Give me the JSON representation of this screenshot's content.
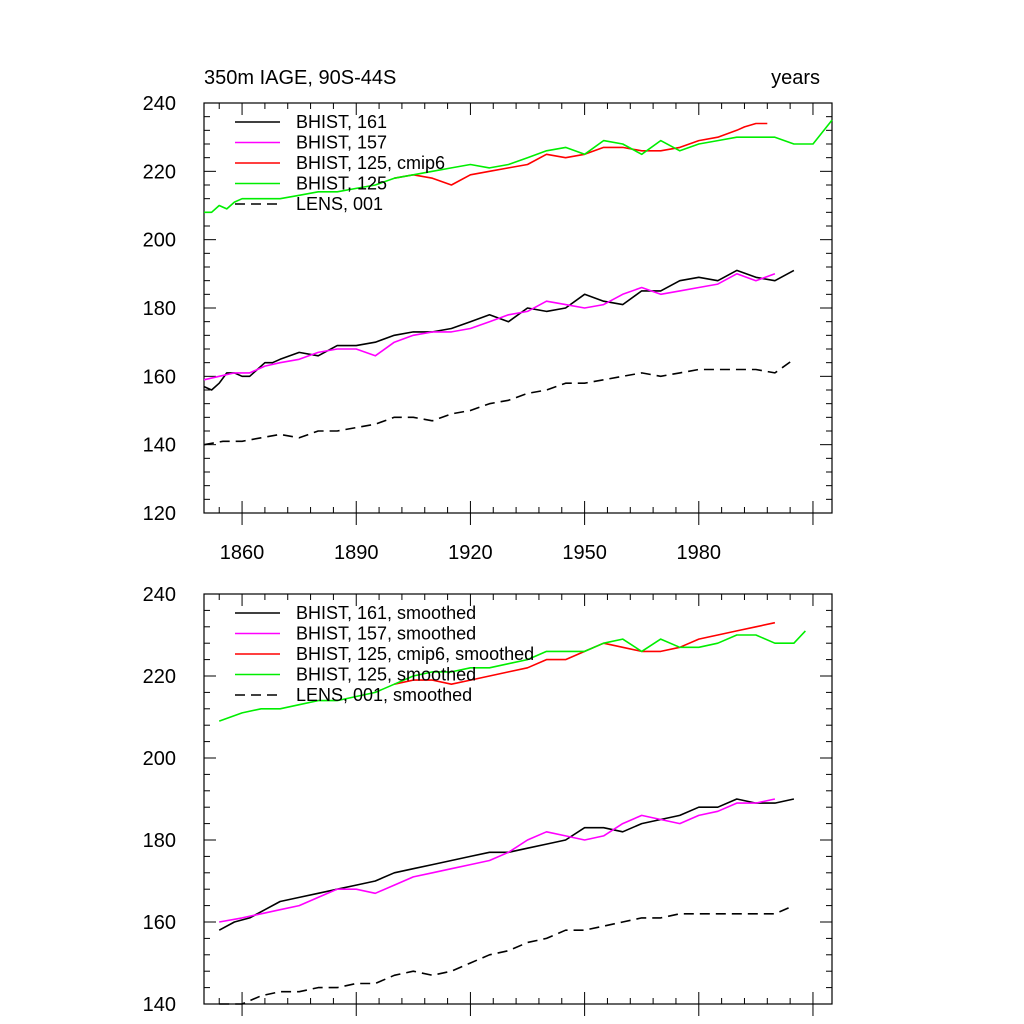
{
  "figure_title": {
    "left": "350m IAGE, 90S-44S",
    "right": "years"
  },
  "colors": {
    "BHIST_161": "#000000",
    "BHIST_157": "#ff00ff",
    "BHIST_125_cmip6": "#ff0000",
    "BHIST_125": "#00ee00",
    "LENS_001": "#000000"
  },
  "chart_data": [
    {
      "type": "line",
      "title": "350m IAGE, 90S-44S",
      "right_title": "years",
      "xlabel": "",
      "ylabel": "",
      "xlim": [
        1850,
        2015
      ],
      "ylim": [
        120,
        240
      ],
      "xticks": [
        1860,
        1890,
        1920,
        1950,
        1980
      ],
      "yticks": [
        120,
        140,
        160,
        180,
        200,
        220,
        240
      ],
      "legend_position": "top-left",
      "series": [
        {
          "name": "BHIST, 161",
          "color": "#000000",
          "dash": "solid",
          "x": [
            1850,
            1852,
            1854,
            1856,
            1858,
            1860,
            1862,
            1864,
            1866,
            1868,
            1870,
            1875,
            1880,
            1885,
            1890,
            1895,
            1900,
            1905,
            1910,
            1915,
            1920,
            1925,
            1930,
            1935,
            1940,
            1945,
            1950,
            1955,
            1960,
            1965,
            1970,
            1975,
            1980,
            1985,
            1990,
            1995,
            2000,
            2005
          ],
          "y": [
            157,
            156,
            158,
            161,
            161,
            160,
            160,
            162,
            164,
            164,
            165,
            167,
            166,
            169,
            169,
            170,
            172,
            173,
            173,
            174,
            176,
            178,
            176,
            180,
            179,
            180,
            184,
            182,
            181,
            185,
            185,
            188,
            189,
            188,
            191,
            189,
            188,
            191
          ]
        },
        {
          "name": "BHIST, 157",
          "color": "#ff00ff",
          "dash": "solid",
          "x": [
            1850,
            1854,
            1858,
            1862,
            1866,
            1870,
            1875,
            1880,
            1885,
            1890,
            1895,
            1900,
            1905,
            1910,
            1915,
            1920,
            1925,
            1930,
            1935,
            1940,
            1945,
            1950,
            1955,
            1960,
            1965,
            1970,
            1975,
            1980,
            1985,
            1990,
            1995,
            2000
          ],
          "y": [
            159,
            160,
            161,
            161,
            163,
            164,
            165,
            167,
            168,
            168,
            166,
            170,
            172,
            173,
            173,
            174,
            176,
            178,
            179,
            182,
            181,
            180,
            181,
            184,
            186,
            184,
            185,
            186,
            187,
            190,
            188,
            190
          ]
        },
        {
          "name": "BHIST, 125, cmip6",
          "color": "#ff0000",
          "dash": "solid",
          "x": [
            1900,
            1905,
            1910,
            1915,
            1920,
            1925,
            1930,
            1935,
            1940,
            1945,
            1950,
            1955,
            1960,
            1965,
            1970,
            1975,
            1980,
            1985,
            1990,
            1992,
            1995,
            1998
          ],
          "y": [
            218,
            219,
            218,
            216,
            219,
            220,
            221,
            222,
            225,
            224,
            225,
            227,
            227,
            226,
            226,
            227,
            229,
            230,
            232,
            233,
            234,
            234
          ]
        },
        {
          "name": "BHIST, 125",
          "color": "#00ee00",
          "dash": "solid",
          "x": [
            1850,
            1852,
            1854,
            1856,
            1858,
            1860,
            1865,
            1870,
            1875,
            1880,
            1885,
            1890,
            1895,
            1900,
            1905,
            1910,
            1915,
            1920,
            1925,
            1930,
            1935,
            1940,
            1945,
            1950,
            1955,
            1960,
            1965,
            1970,
            1975,
            1980,
            1985,
            1990,
            1995,
            2000,
            2005,
            2010,
            2015
          ],
          "y": [
            208,
            208,
            210,
            209,
            211,
            212,
            212,
            212,
            213,
            214,
            214,
            215,
            216,
            218,
            219,
            220,
            221,
            222,
            221,
            222,
            224,
            226,
            227,
            225,
            229,
            228,
            225,
            229,
            226,
            228,
            229,
            230,
            230,
            230,
            228,
            228,
            235
          ]
        },
        {
          "name": "LENS, 001",
          "color": "#000000",
          "dash": "dashed",
          "x": [
            1850,
            1855,
            1860,
            1865,
            1870,
            1875,
            1880,
            1885,
            1890,
            1895,
            1900,
            1905,
            1910,
            1915,
            1920,
            1925,
            1930,
            1935,
            1940,
            1945,
            1950,
            1955,
            1960,
            1965,
            1970,
            1975,
            1980,
            1985,
            1990,
            1995,
            2000,
            2005
          ],
          "y": [
            140,
            141,
            141,
            142,
            143,
            142,
            144,
            144,
            145,
            146,
            148,
            148,
            147,
            149,
            150,
            152,
            153,
            155,
            156,
            158,
            158,
            159,
            160,
            161,
            160,
            161,
            162,
            162,
            162,
            162,
            161,
            165
          ]
        }
      ]
    },
    {
      "type": "line",
      "title": "",
      "xlabel": "",
      "ylabel": "",
      "xlim": [
        1850,
        2015
      ],
      "ylim": [
        140,
        240
      ],
      "xticks": [
        1860,
        1890,
        1920,
        1950,
        1980
      ],
      "yticks": [
        140,
        160,
        180,
        200,
        220,
        240
      ],
      "legend_position": "top-left",
      "series": [
        {
          "name": "BHIST, 161, smoothed",
          "color": "#000000",
          "dash": "solid",
          "x": [
            1854,
            1858,
            1862,
            1866,
            1870,
            1875,
            1880,
            1885,
            1890,
            1895,
            1900,
            1905,
            1910,
            1915,
            1920,
            1925,
            1930,
            1935,
            1940,
            1945,
            1950,
            1955,
            1960,
            1965,
            1970,
            1975,
            1980,
            1985,
            1990,
            1995,
            2000,
            2005
          ],
          "y": [
            158,
            160,
            161,
            163,
            165,
            166,
            167,
            168,
            169,
            170,
            172,
            173,
            174,
            175,
            176,
            177,
            177,
            178,
            179,
            180,
            183,
            183,
            182,
            184,
            185,
            186,
            188,
            188,
            190,
            189,
            189,
            190
          ]
        },
        {
          "name": "BHIST, 157, smoothed",
          "color": "#ff00ff",
          "dash": "solid",
          "x": [
            1854,
            1860,
            1865,
            1870,
            1875,
            1880,
            1885,
            1890,
            1895,
            1900,
            1905,
            1910,
            1915,
            1920,
            1925,
            1930,
            1935,
            1940,
            1945,
            1950,
            1955,
            1960,
            1965,
            1970,
            1975,
            1980,
            1985,
            1990,
            1995,
            2000
          ],
          "y": [
            160,
            161,
            162,
            163,
            164,
            166,
            168,
            168,
            167,
            169,
            171,
            172,
            173,
            174,
            175,
            177,
            180,
            182,
            181,
            180,
            181,
            184,
            186,
            185,
            184,
            186,
            187,
            189,
            189,
            190
          ]
        },
        {
          "name": "BHIST, 125, cmip6, smoothed",
          "color": "#ff0000",
          "dash": "solid",
          "x": [
            1900,
            1905,
            1910,
            1915,
            1920,
            1925,
            1930,
            1935,
            1940,
            1945,
            1950,
            1955,
            1960,
            1965,
            1970,
            1975,
            1980,
            1985,
            1990,
            1995,
            2000
          ],
          "y": [
            218,
            219,
            219,
            218,
            219,
            220,
            221,
            222,
            224,
            224,
            226,
            228,
            227,
            226,
            226,
            227,
            229,
            230,
            231,
            232,
            233
          ]
        },
        {
          "name": "BHIST, 125, smoothed",
          "color": "#00ee00",
          "dash": "solid",
          "x": [
            1854,
            1860,
            1865,
            1870,
            1875,
            1880,
            1885,
            1890,
            1895,
            1900,
            1905,
            1910,
            1915,
            1920,
            1925,
            1930,
            1935,
            1940,
            1945,
            1950,
            1955,
            1960,
            1965,
            1970,
            1975,
            1980,
            1985,
            1990,
            1995,
            2000,
            2005,
            2008
          ],
          "y": [
            209,
            211,
            212,
            212,
            213,
            214,
            214,
            215,
            216,
            218,
            220,
            221,
            221,
            222,
            222,
            223,
            224,
            226,
            226,
            226,
            228,
            229,
            226,
            229,
            227,
            227,
            228,
            230,
            230,
            228,
            228,
            231
          ]
        },
        {
          "name": "LENS, 001, smoothed",
          "color": "#000000",
          "dash": "dashed",
          "x": [
            1854,
            1860,
            1865,
            1870,
            1875,
            1880,
            1885,
            1890,
            1895,
            1900,
            1905,
            1910,
            1915,
            1920,
            1925,
            1930,
            1935,
            1940,
            1945,
            1950,
            1955,
            1960,
            1965,
            1970,
            1975,
            1980,
            1985,
            1990,
            1995,
            2000,
            2005
          ],
          "y": [
            140,
            140,
            142,
            143,
            143,
            144,
            144,
            145,
            145,
            147,
            148,
            147,
            148,
            150,
            152,
            153,
            155,
            156,
            158,
            158,
            159,
            160,
            161,
            161,
            162,
            162,
            162,
            162,
            162,
            162,
            164
          ]
        }
      ]
    }
  ]
}
